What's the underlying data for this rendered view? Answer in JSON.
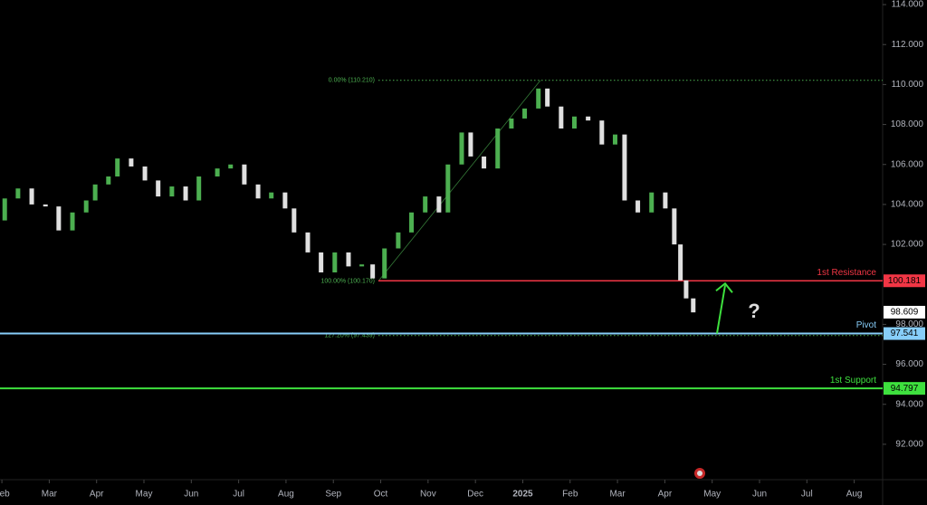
{
  "chart_data": {
    "type": "candlestick",
    "x": [
      2.06,
      2.34,
      2.63,
      2.92,
      3.2,
      3.49,
      3.78,
      3.97,
      4.25,
      4.44,
      4.73,
      5.02,
      5.3,
      5.59,
      5.88,
      6.16,
      6.55,
      6.83,
      7.12,
      7.41,
      7.69,
      7.98,
      8.17,
      8.46,
      8.74,
      9.03,
      9.32,
      9.6,
      9.83,
      10.08,
      10.37,
      10.65,
      10.94,
      11.23,
      11.42,
      11.71,
      11.9,
      12.18,
      12.47,
      12.76,
      13.04,
      13.33,
      13.52,
      13.81,
      14.09,
      14.38,
      14.67,
      14.95,
      15.15,
      15.43,
      15.72,
      16.01,
      16.2,
      16.33,
      16.45,
      16.6
    ],
    "open": [
      103.2,
      104.3,
      104.8,
      104.0,
      103.9,
      102.7,
      103.6,
      104.2,
      105.0,
      105.4,
      106.3,
      105.9,
      105.2,
      104.4,
      104.9,
      104.2,
      105.4,
      105.8,
      106.0,
      105.0,
      104.3,
      104.6,
      103.8,
      102.6,
      101.6,
      100.6,
      101.6,
      100.9,
      101.0,
      100.3,
      101.8,
      102.6,
      103.6,
      104.4,
      103.6,
      106.0,
      107.6,
      106.4,
      105.8,
      107.8,
      108.3,
      108.8,
      109.8,
      108.9,
      107.8,
      108.4,
      108.2,
      107.0,
      107.5,
      104.2,
      103.6,
      104.6,
      103.8,
      102.0,
      100.2,
      99.3
    ],
    "close": [
      104.3,
      104.8,
      104.0,
      103.9,
      102.7,
      103.6,
      104.2,
      105.0,
      105.4,
      106.3,
      105.9,
      105.2,
      104.4,
      104.9,
      104.2,
      105.4,
      105.8,
      106.0,
      105.0,
      104.3,
      104.6,
      103.8,
      102.6,
      101.6,
      100.6,
      101.6,
      100.9,
      101.0,
      100.3,
      101.8,
      102.6,
      103.6,
      104.4,
      103.6,
      106.0,
      107.6,
      106.4,
      105.8,
      107.8,
      108.3,
      108.8,
      109.8,
      108.9,
      107.8,
      108.4,
      108.2,
      107.0,
      107.5,
      104.2,
      103.6,
      104.6,
      103.8,
      102.0,
      100.2,
      99.3,
      98.6
    ],
    "up_color": "#4caf50",
    "down_color": "#e0e0e0",
    "xlim": [
      1.96,
      20.6
    ],
    "ylim": [
      90.23,
      114.23
    ],
    "xticks": [
      {
        "value": 2,
        "label": "Feb"
      },
      {
        "value": 3,
        "label": "Mar"
      },
      {
        "value": 4,
        "label": "Apr"
      },
      {
        "value": 5,
        "label": "May"
      },
      {
        "value": 6,
        "label": "Jun"
      },
      {
        "value": 7,
        "label": "Jul"
      },
      {
        "value": 8,
        "label": "Aug"
      },
      {
        "value": 9,
        "label": "Sep"
      },
      {
        "value": 10,
        "label": "Oct"
      },
      {
        "value": 11,
        "label": "Nov"
      },
      {
        "value": 12,
        "label": "Dec"
      },
      {
        "value": 13,
        "label": "2025"
      },
      {
        "value": 14,
        "label": "Feb"
      },
      {
        "value": 15,
        "label": "Mar"
      },
      {
        "value": 16,
        "label": "Apr"
      },
      {
        "value": 17,
        "label": "May"
      },
      {
        "value": 18,
        "label": "Jun"
      },
      {
        "value": 19,
        "label": "Jul"
      },
      {
        "value": 20,
        "label": "Aug"
      }
    ],
    "yticks": [
      {
        "value": 92,
        "label": "92.000"
      },
      {
        "value": 94,
        "label": "94.000"
      },
      {
        "value": 96,
        "label": "96.000"
      },
      {
        "value": 98,
        "label": "98.000"
      },
      {
        "value": 102,
        "label": "102.000"
      },
      {
        "value": 104,
        "label": "104.000"
      },
      {
        "value": 106,
        "label": "106.000"
      },
      {
        "value": 108,
        "label": "108.000"
      },
      {
        "value": 110,
        "label": "110.000"
      },
      {
        "value": 112,
        "label": "112.000"
      },
      {
        "value": 114,
        "label": "114.000"
      }
    ],
    "fib_levels": [
      {
        "label": "0.00% (110.210)",
        "value": 110.21
      },
      {
        "label": "100.00% (100.170)",
        "value": 100.17
      },
      {
        "label": "127.20% (97.439)",
        "value": 97.439
      }
    ],
    "levels": [
      {
        "name": "1st Resistance",
        "value": 100.181,
        "color": "#f23645"
      },
      {
        "name": "Pivot",
        "value": 97.541,
        "color": "#87cefa"
      },
      {
        "name": "1st Support",
        "value": 94.797,
        "color": "#3ee03e"
      }
    ],
    "last_price": 98.609,
    "annotation": "?"
  }
}
